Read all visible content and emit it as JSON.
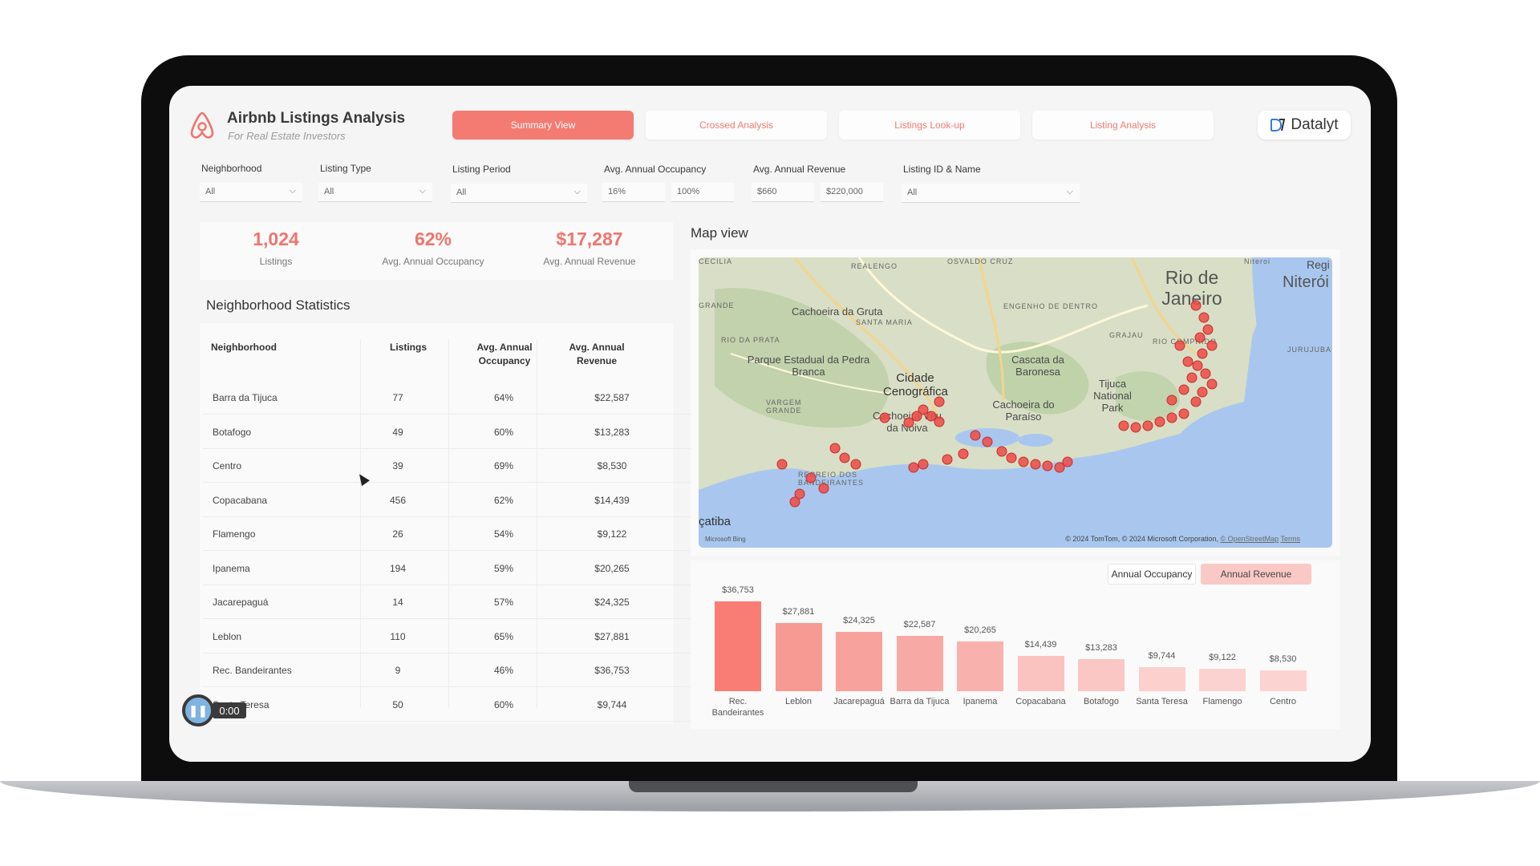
{
  "app": {
    "title": "Airbnb Listings Analysis",
    "subtitle": "For Real Estate Investors",
    "brand": "Datalyt"
  },
  "tabs": [
    {
      "label": "Summary View",
      "active": true
    },
    {
      "label": "Crossed Analysis",
      "active": false
    },
    {
      "label": "Listings Look-up",
      "active": false
    },
    {
      "label": "Listing Analysis",
      "active": false
    }
  ],
  "filters": {
    "neighborhood": {
      "label": "Neighborhood",
      "value": "All"
    },
    "listing_type": {
      "label": "Listing Type",
      "value": "All"
    },
    "listing_period": {
      "label": "Listing Period",
      "value": "All"
    },
    "occupancy": {
      "label": "Avg. Annual Occupancy",
      "min": "16%",
      "max": "100%"
    },
    "revenue": {
      "label": "Avg. Annual Revenue",
      "min": "$660",
      "max": "$220,000"
    },
    "listing_id": {
      "label": "Listing ID & Name",
      "value": "All"
    }
  },
  "kpis": [
    {
      "value": "1,024",
      "label": "Listings"
    },
    {
      "value": "62%",
      "label": "Avg. Annual Occupancy"
    },
    {
      "value": "$17,287",
      "label": "Avg. Annual Revenue"
    }
  ],
  "neighborhood_stats": {
    "title": "Neighborhood Statistics",
    "columns": [
      "Neighborhood",
      "Listings",
      "Avg. Annual Occupancy",
      "Avg. Annual Revenue"
    ],
    "rows": [
      [
        "Barra da Tijuca",
        "77",
        "64%",
        "$22,587"
      ],
      [
        "Botafogo",
        "49",
        "60%",
        "$13,283"
      ],
      [
        "Centro",
        "39",
        "69%",
        "$8,530"
      ],
      [
        "Copacabana",
        "456",
        "62%",
        "$14,439"
      ],
      [
        "Flamengo",
        "26",
        "54%",
        "$9,122"
      ],
      [
        "Ipanema",
        "194",
        "59%",
        "$20,265"
      ],
      [
        "Jacarepaguá",
        "14",
        "57%",
        "$24,325"
      ],
      [
        "Leblon",
        "110",
        "65%",
        "$27,881"
      ],
      [
        "Rec. Bandeirantes",
        "9",
        "46%",
        "$36,753"
      ],
      [
        "Santa Teresa",
        "50",
        "60%",
        "$9,744"
      ]
    ]
  },
  "map": {
    "title": "Map view",
    "labels": {
      "city": "Rio de Janeiro",
      "niteroi": "Niterói",
      "cachoeira_gruta": "Cachoeira da Gruta",
      "pedra_branca": "Parque Estadual da Pedra Branca",
      "cidade_cenografica": "Cidade Cenográfica",
      "cascata_baronesa": "Cascata da Baronesa",
      "tijuca": "Tijuca National Park",
      "cachoeira_paraiso": "Cachoeira do Paraíso",
      "cachoeira_veu": "Cachoeira Véu da Noiva",
      "catiba": "çatiba",
      "cecilia": "CECILIA",
      "realengo": "REALENGO",
      "osvaldo": "OSVALDO CRUZ",
      "grande": "GRANDE",
      "santa_maria": "SANTA MARIA",
      "engenho": "ENGENHO DE DENTRO",
      "rio_prata": "RIO DA PRATA",
      "grajau": "GRAJAU",
      "vargem": "VARGEM GRANDE",
      "recreio": "RECREIO DOS BANDEIRANTES",
      "rio_comprido": "RIO COMPRIDO",
      "jurujuba": "JURUJUBA",
      "reg": "Regi",
      "niteroi_small": "Niteroi"
    },
    "attribution": "© 2024 TomTom, © 2024 Microsoft Corporation,",
    "osm": "© OpenStreetMap",
    "terms": "Terms",
    "bing": "Microsoft Bing"
  },
  "chart_toggles": [
    {
      "label": "Annual Occupancy",
      "active": false
    },
    {
      "label": "Annual Revenue",
      "active": true
    }
  ],
  "chart_data": {
    "type": "bar",
    "categories": [
      "Rec. Bandeirantes",
      "Leblon",
      "Jacarepaguá",
      "Barra da Tijuca",
      "Ipanema",
      "Copacabana",
      "Botafogo",
      "Santa Teresa",
      "Flamengo",
      "Centro"
    ],
    "values": [
      36753,
      27881,
      24325,
      22587,
      20265,
      14439,
      13283,
      9744,
      9122,
      8530
    ],
    "value_labels": [
      "$36,753",
      "$27,881",
      "$24,325",
      "$22,587",
      "$20,265",
      "$14,439",
      "$13,283",
      "$9,744",
      "$9,122",
      "$8,530"
    ],
    "colors": [
      "#fa7d75",
      "#f79a94",
      "#f8a29d",
      "#f7aaa5",
      "#f8b1ad",
      "#fac3c0",
      "#fac7c4",
      "#fbd0cd",
      "#fbd2cf",
      "#fbd4d1"
    ],
    "title": "",
    "xlabel": "",
    "ylabel": "",
    "ylim": [
      0,
      40000
    ]
  },
  "player": {
    "time": "0:00"
  },
  "colors": {
    "accent": "#f47b72",
    "kpi": "#f0746c"
  }
}
